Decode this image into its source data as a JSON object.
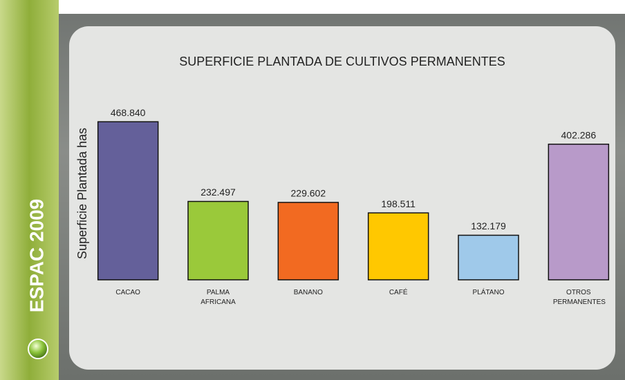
{
  "sidebar_label": "ESPAC 2009",
  "chart_data": {
    "type": "bar",
    "title": "SUPERFICIE PLANTADA DE CULTIVOS PERMANENTES",
    "y_label": "Superficie Plantada has",
    "categories": [
      "CACAO",
      "PALMA AFRICANA",
      "BANANO",
      "CAFÉ",
      "PLÁTANO",
      "OTROS PERMANENTES"
    ],
    "values": [
      468840,
      232497,
      229602,
      198511,
      132179,
      402286
    ],
    "value_labels": [
      "468.840",
      "232.497",
      "229.602",
      "198.511",
      "132.179",
      "402.286"
    ],
    "colors": [
      "#64609a",
      "#9ac93a",
      "#f26a21",
      "#ffc800",
      "#9fc9ea",
      "#b89ac9"
    ],
    "ylim": [
      0,
      500000
    ]
  }
}
